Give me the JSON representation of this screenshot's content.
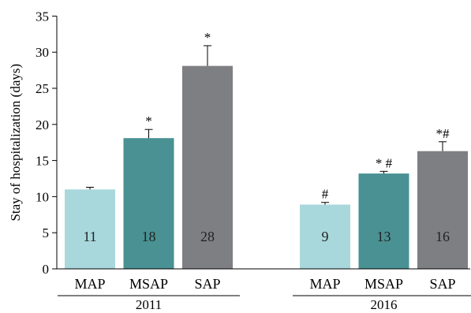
{
  "chart_data": {
    "type": "bar",
    "ylabel": "Stay of hospitalization (days)",
    "ylim": [
      0,
      35
    ],
    "yticks": [
      0,
      5,
      10,
      15,
      20,
      25,
      30,
      35
    ],
    "grid": false,
    "groups": [
      {
        "label": "2011",
        "bars": [
          {
            "category": "MAP",
            "value": 11,
            "error": 0.3,
            "value_label": "11",
            "annotation": "",
            "color": "#a9d8dc"
          },
          {
            "category": "MSAP",
            "value": 18.1,
            "error": 1.2,
            "value_label": "18",
            "annotation": "*",
            "color": "#4a9193"
          },
          {
            "category": "SAP",
            "value": 28.1,
            "error": 2.8,
            "value_label": "28",
            "annotation": "*",
            "color": "#7e7f83"
          }
        ]
      },
      {
        "label": "2016",
        "bars": [
          {
            "category": "MAP",
            "value": 8.9,
            "error": 0.3,
            "value_label": "9",
            "annotation": "#",
            "color": "#a9d8dc"
          },
          {
            "category": "MSAP",
            "value": 13.2,
            "error": 0.3,
            "value_label": "13",
            "annotation": "* #",
            "color": "#4a9193"
          },
          {
            "category": "SAP",
            "value": 16.3,
            "error": 1.3,
            "value_label": "16",
            "annotation": "*#",
            "color": "#7e7f83"
          }
        ]
      }
    ]
  }
}
